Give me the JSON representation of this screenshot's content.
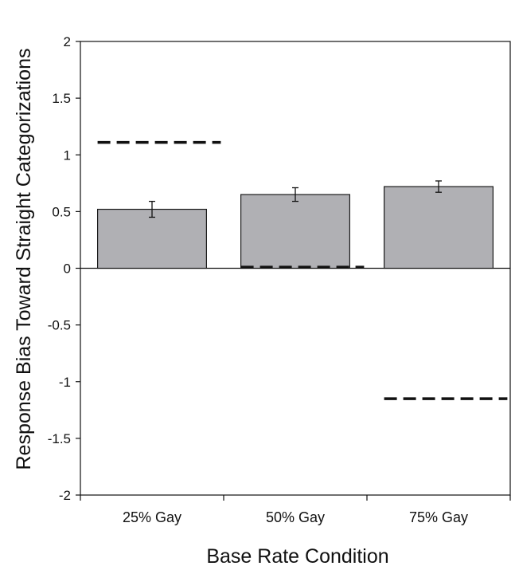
{
  "chart_data": {
    "type": "bar",
    "xlabel": "Base Rate Condition",
    "ylabel": "Response Bias Toward Straight Categorizations",
    "categories": [
      "25% Gay",
      "50% Gay",
      "75% Gay"
    ],
    "series": [
      {
        "values": [
          0.52,
          0.65,
          0.72
        ],
        "error": [
          0.07,
          0.06,
          0.05
        ]
      }
    ],
    "reference_lines": [
      1.11,
      0.01,
      -1.15
    ],
    "ylim": [
      -2,
      2
    ],
    "yticks": [
      2,
      1.5,
      1,
      0.5,
      0,
      -0.5,
      -1,
      -1.5,
      -2
    ],
    "ytick_labels": [
      "2",
      "1.5",
      "1",
      "0.5",
      "0",
      "-0.5",
      "-1",
      "-1.5",
      "-2"
    ],
    "grid": false,
    "legend": "none",
    "colors": {
      "bar": "#b0b0b4",
      "bar_stroke": "#1a1a1a",
      "reference_line": "#111111",
      "axis": "#111111"
    }
  }
}
